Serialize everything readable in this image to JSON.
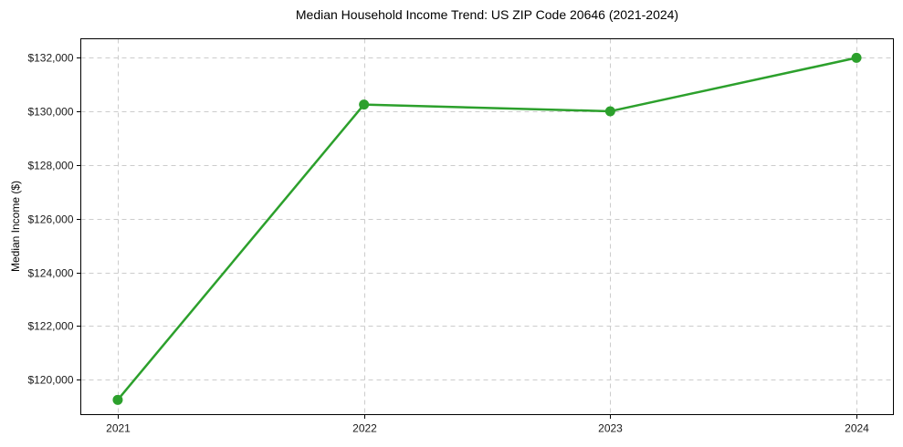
{
  "chart_data": {
    "type": "line",
    "title": "Median Household Income Trend: US ZIP Code 20646 (2021-2024)",
    "xlabel": "",
    "ylabel": "Median Income ($)",
    "x": [
      2021,
      2022,
      2023,
      2024
    ],
    "x_tick_labels": [
      "2021",
      "2022",
      "2023",
      "2024"
    ],
    "series": [
      {
        "name": "Median Household Income",
        "values": [
          119250,
          130250,
          130000,
          131990
        ]
      }
    ],
    "y_ticks": [
      120000,
      122000,
      124000,
      126000,
      128000,
      130000,
      132000
    ],
    "y_tick_labels": [
      "$120,000",
      "$122,000",
      "$124,000",
      "$126,000",
      "$128,000",
      "$130,000",
      "$132,000"
    ],
    "xlim": [
      2020.85,
      2024.15
    ],
    "ylim": [
      118700,
      132700
    ],
    "grid": true,
    "grid_style": "dashed",
    "legend": "none",
    "marker": "circle",
    "colors": {
      "line": "#2ca02c",
      "marker": "#2ca02c",
      "grid": "#cccccc",
      "axis": "#000000",
      "tick_text": "#1a1a1a",
      "background": "#ffffff"
    }
  }
}
